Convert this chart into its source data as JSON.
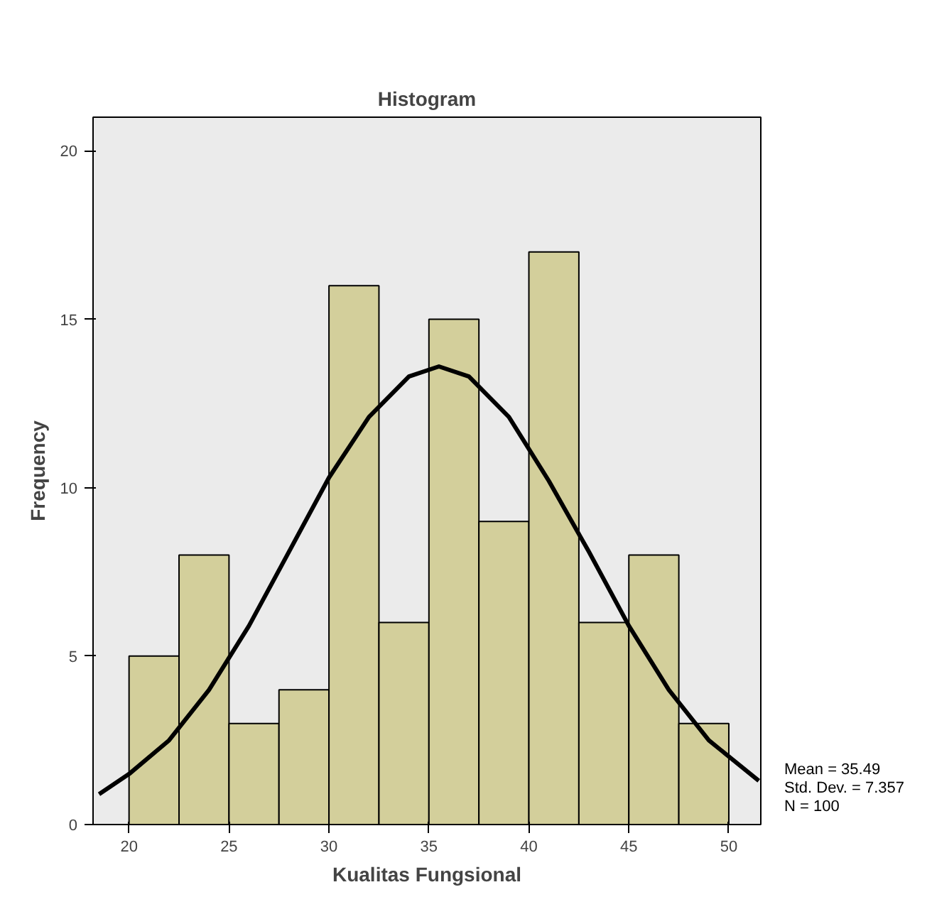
{
  "chart_data": {
    "type": "histogram",
    "title": "Histogram",
    "xlabel": "Kualitas Fungsional",
    "ylabel": "Frequency",
    "bins": [
      20,
      22.5,
      25,
      27.5,
      30,
      32.5,
      35,
      37.5,
      40,
      42.5,
      45,
      47.5,
      50
    ],
    "values": [
      5,
      8,
      3,
      4,
      16,
      6,
      15,
      9,
      17,
      6,
      8,
      3
    ],
    "color": "#d3cf9b",
    "series": [
      {
        "type": "line",
        "color": "#000000",
        "x": [
          18.5,
          20,
          22,
          24,
          26,
          28,
          30,
          32,
          34,
          35.5,
          37,
          39,
          41,
          43,
          45,
          47,
          49,
          51.5
        ],
        "values": [
          0.9,
          1.5,
          2.5,
          4.0,
          5.9,
          8.1,
          10.3,
          12.1,
          13.3,
          13.6,
          13.3,
          12.1,
          10.2,
          8.1,
          5.9,
          4.0,
          2.5,
          1.3
        ]
      }
    ],
    "xlim": [
      18.2,
      51.6
    ],
    "ylim": [
      0,
      21
    ],
    "xticks": [
      20,
      25,
      30,
      35,
      40,
      45,
      50
    ],
    "yticks": [
      0,
      5,
      10,
      15,
      20
    ],
    "grid": false,
    "annotations": [
      "Mean = 35.49",
      "Std. Dev. = 7.357",
      "N = 100"
    ]
  }
}
